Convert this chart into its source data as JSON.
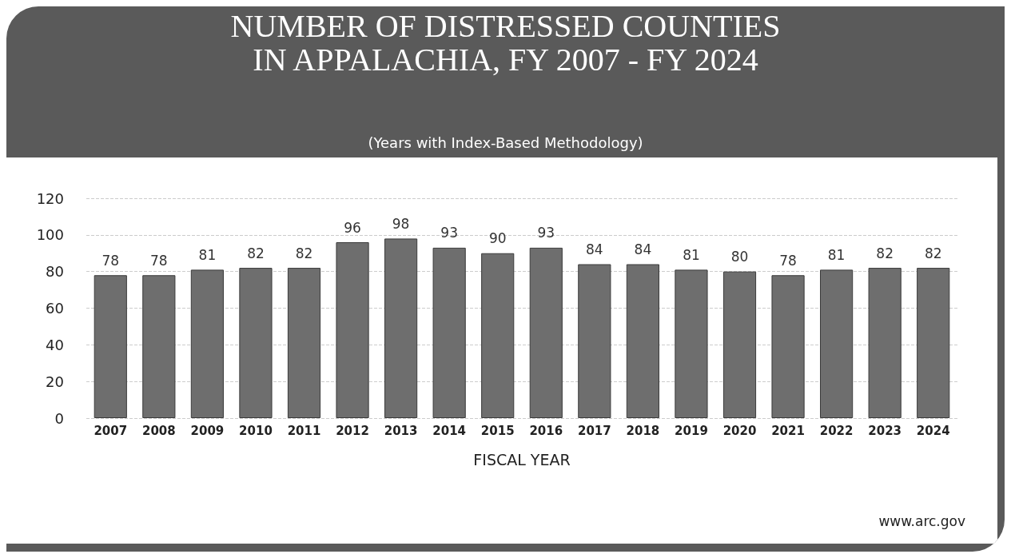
{
  "chart_data": {
    "type": "bar",
    "title": "NUMBER OF DISTRESSED COUNTIES\nIN APPALACHIA, FY 2007 - FY 2024",
    "subtitle": "(Years with Index-Based Methodology)",
    "xlabel": "FISCAL YEAR",
    "categories": [
      "2007",
      "2008",
      "2009",
      "2010",
      "2011",
      "2012",
      "2013",
      "2014",
      "2015",
      "2016",
      "2017",
      "2018",
      "2019",
      "2020",
      "2021",
      "2022",
      "2023",
      "2024"
    ],
    "values": [
      78,
      78,
      81,
      82,
      82,
      96,
      98,
      93,
      90,
      93,
      84,
      84,
      81,
      80,
      78,
      81,
      82,
      82
    ],
    "color": "#6e6e6e",
    "ylim": [
      0,
      120
    ],
    "yticks": [
      0,
      20,
      40,
      60,
      80,
      100,
      120
    ],
    "grid": "y",
    "data_labels": true,
    "annotations": [
      "www.arc.gov"
    ]
  }
}
